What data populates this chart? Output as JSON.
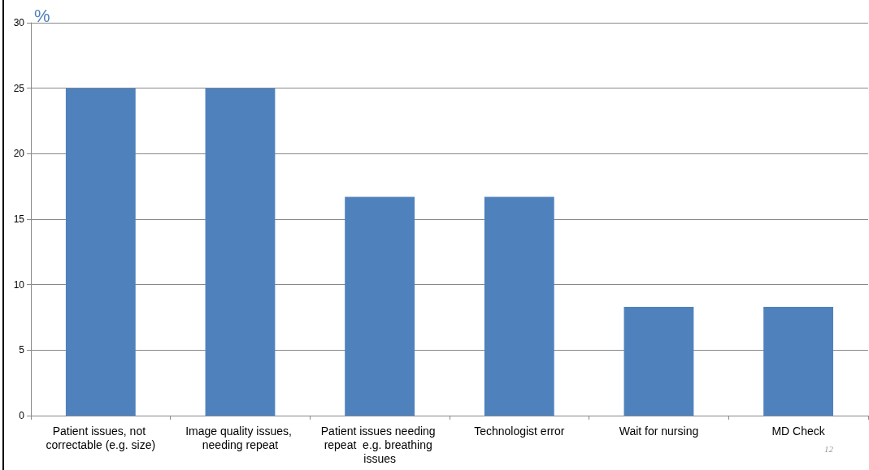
{
  "chart_data": {
    "type": "bar",
    "ylabel": "%",
    "categories": [
      "Patient issues, not correctable (e.g. size)",
      "Image quality issues, needing repeat",
      "Patient issues needing repeat  e.g. breathing issues",
      "Technologist error",
      "Wait for nursing",
      "MD Check"
    ],
    "values": [
      25,
      25,
      16.7,
      16.7,
      8.3,
      8.3
    ],
    "color": "#4f81bd",
    "ylim": [
      0,
      30
    ],
    "yticks": [
      0,
      5,
      10,
      15,
      20,
      25,
      30
    ],
    "grid": "y",
    "annotations": [
      "12"
    ]
  }
}
